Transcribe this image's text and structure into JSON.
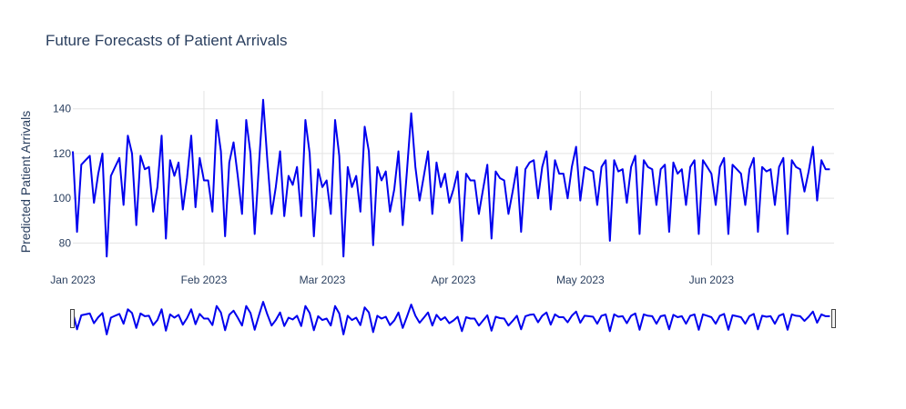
{
  "chart_data": {
    "type": "line",
    "title": "Future Forecasts of Patient Arrivals",
    "xlabel": "",
    "ylabel": "Predicted Patient Arrivals",
    "x_start": "2023-01-01",
    "x_end": "2023-06-30",
    "xlim": [
      "2023-01-01",
      "2023-06-30"
    ],
    "ylim": [
      70,
      148
    ],
    "x_ticks": [
      {
        "date": "2023-01-01",
        "label": "Jan 2023"
      },
      {
        "date": "2023-02-01",
        "label": "Feb 2023"
      },
      {
        "date": "2023-03-01",
        "label": "Mar 2023"
      },
      {
        "date": "2023-04-01",
        "label": "Apr 2023"
      },
      {
        "date": "2023-05-01",
        "label": "May 2023"
      },
      {
        "date": "2023-06-01",
        "label": "Jun 2023"
      }
    ],
    "y_ticks": [
      80,
      100,
      120,
      140
    ],
    "grid": true,
    "legend": "none",
    "range_slider": true,
    "line_color": "#0000ee",
    "series": [
      {
        "name": "",
        "values": [
          121,
          85,
          115,
          117,
          119,
          98,
          111,
          120,
          74,
          110,
          114,
          118,
          97,
          128,
          120,
          88,
          119,
          113,
          114,
          94,
          105,
          128,
          82,
          117,
          110,
          116,
          95,
          109,
          128,
          96,
          118,
          108,
          108,
          94,
          135,
          121,
          83,
          116,
          125,
          110,
          93,
          135,
          120,
          84,
          115,
          144,
          117,
          93,
          105,
          121,
          92,
          110,
          106,
          114,
          92,
          135,
          120,
          83,
          113,
          105,
          108,
          93,
          135,
          119,
          74,
          114,
          105,
          110,
          94,
          132,
          121,
          79,
          114,
          108,
          112,
          94,
          104,
          121,
          88,
          112,
          138,
          114,
          99,
          110,
          121,
          93,
          116,
          105,
          111,
          98,
          104,
          112,
          81,
          111,
          108,
          108,
          93,
          104,
          115,
          82,
          112,
          109,
          108,
          93,
          103,
          114,
          85,
          113,
          116,
          117,
          100,
          114,
          121,
          95,
          117,
          111,
          111,
          100,
          114,
          123,
          99,
          114,
          113,
          112,
          97,
          114,
          117,
          81,
          117,
          112,
          113,
          98,
          114,
          119,
          84,
          117,
          114,
          113,
          97,
          113,
          115,
          85,
          116,
          111,
          113,
          97,
          114,
          117,
          84,
          117,
          114,
          111,
          97,
          114,
          118,
          84,
          115,
          113,
          111,
          97,
          113,
          118,
          85,
          114,
          112,
          113,
          97,
          114,
          118,
          84,
          117,
          114,
          113,
          103,
          112,
          123,
          99,
          117,
          113,
          113
        ]
      }
    ]
  }
}
